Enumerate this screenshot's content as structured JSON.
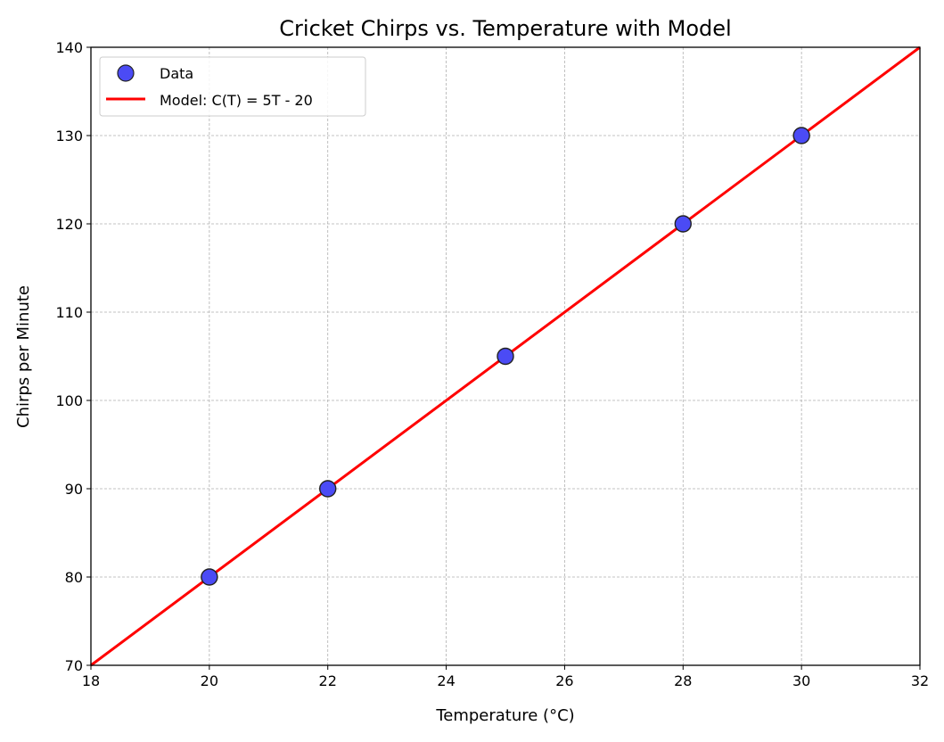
{
  "chart_data": {
    "type": "scatter",
    "title": "Cricket Chirps vs. Temperature with Model",
    "xlabel": "Temperature (°C)",
    "ylabel": "Chirps per Minute",
    "xlim": [
      18,
      32
    ],
    "ylim": [
      70,
      140
    ],
    "xticks": [
      18,
      20,
      22,
      24,
      26,
      28,
      30,
      32
    ],
    "yticks": [
      70,
      80,
      90,
      100,
      110,
      120,
      130,
      140
    ],
    "grid": true,
    "legend_position": "top-left",
    "series": [
      {
        "name": "Data",
        "type": "scatter",
        "color": "#4b4bf5",
        "edgecolor": "#222222",
        "x": [
          20,
          22,
          25,
          28,
          30
        ],
        "y": [
          80,
          90,
          105,
          120,
          130
        ]
      },
      {
        "name": "Model: C(T) = 5T - 20",
        "type": "line",
        "color": "#ff0000",
        "x": [
          18,
          32
        ],
        "y": [
          70,
          140
        ]
      }
    ]
  }
}
